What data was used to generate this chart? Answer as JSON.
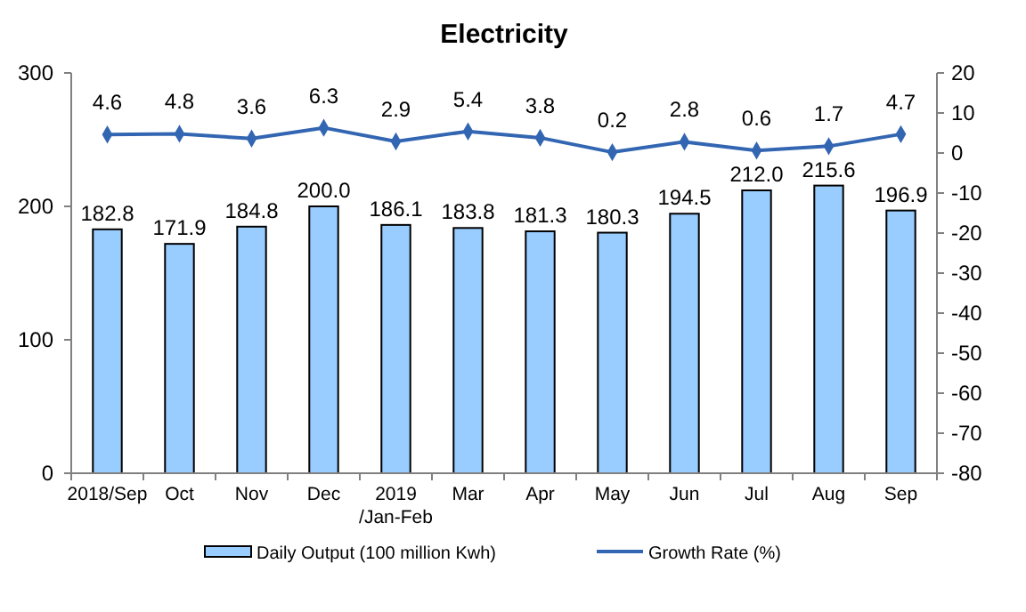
{
  "chart_data": {
    "type": "bar",
    "title": "Electricity",
    "categories": [
      "2018/Sep",
      "Oct",
      "Nov",
      "Dec",
      "2019\n/Jan-Feb",
      "Mar",
      "Apr",
      "May",
      "Jun",
      "Jul",
      "Aug",
      "Sep"
    ],
    "series": [
      {
        "name": "Daily Output (100 million Kwh)",
        "color": "#99ccff",
        "values": [
          182.8,
          171.9,
          184.8,
          200.0,
          186.1,
          183.8,
          181.3,
          180.3,
          194.5,
          212.0,
          215.6,
          196.9
        ],
        "value_labels": [
          "182.8",
          "171.9",
          "184.8",
          "200.0",
          "186.1",
          "183.8",
          "181.3",
          "180.3",
          "194.5",
          "212.0",
          "215.6",
          "196.9"
        ]
      },
      {
        "name": "Growth Rate (%)",
        "type": "line",
        "axis": "y2",
        "color": "#3366b2",
        "marker": "diamond",
        "values": [
          4.6,
          4.8,
          3.6,
          6.3,
          2.9,
          5.4,
          3.8,
          0.2,
          2.8,
          0.6,
          1.7,
          4.7
        ],
        "value_labels": [
          "4.6",
          "4.8",
          "3.6",
          "6.3",
          "2.9",
          "5.4",
          "3.8",
          "0.2",
          "2.8",
          "0.6",
          "1.7",
          "4.7"
        ]
      }
    ],
    "ylim": [
      0,
      300
    ],
    "yticks": [
      0,
      100,
      200,
      300
    ],
    "y2lim": [
      -80,
      20
    ],
    "y2ticks": [
      -80,
      -70,
      -60,
      -50,
      -40,
      -30,
      -20,
      -10,
      0,
      10,
      20
    ],
    "legend": "bottom"
  }
}
